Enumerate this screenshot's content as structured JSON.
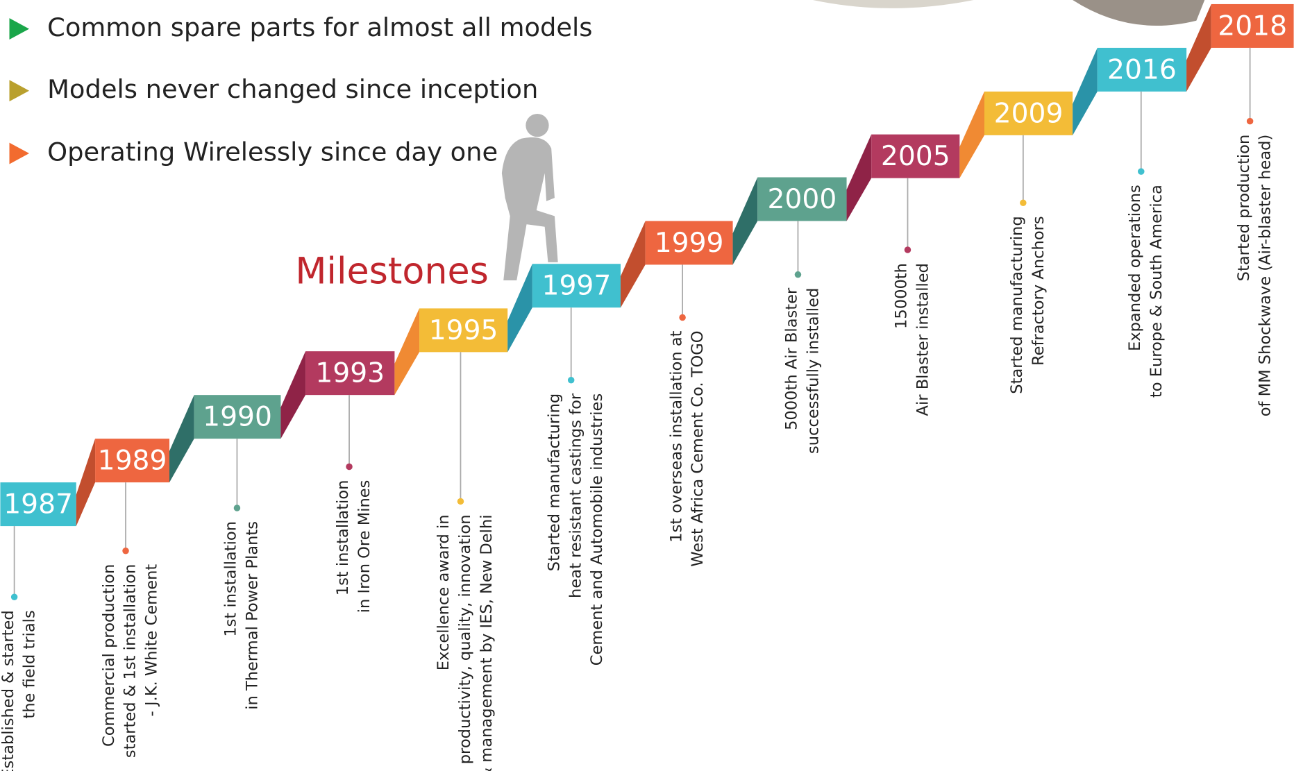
{
  "bullets": [
    {
      "text": "Common spare parts for almost all models",
      "color": "#1aa64a"
    },
    {
      "text": "Models never changed since inception",
      "color": "#b9a02e"
    },
    {
      "text": "Operating Wirelessly since day one",
      "color": "#f26b2f"
    }
  ],
  "title": "Milestones",
  "milestones": [
    {
      "year": "1987",
      "color": "#3fc0cf",
      "shade": "#2a93a0",
      "lines": [
        "Established & started",
        "the field trials"
      ]
    },
    {
      "year": "1989",
      "color": "#ee6640",
      "shade": "#c24e2e",
      "lines": [
        "Commercial production",
        "started & 1st installation",
        "- J.K. White Cement"
      ]
    },
    {
      "year": "1990",
      "color": "#5ea28e",
      "shade": "#2f6f68",
      "lines": [
        "1st installation",
        "in Thermal Power Plants"
      ]
    },
    {
      "year": "1993",
      "color": "#b33a5f",
      "shade": "#8f2347",
      "lines": [
        "1st installation",
        "in Iron Ore Mines"
      ]
    },
    {
      "year": "1995",
      "color": "#f3bc37",
      "shade": "#f08a33",
      "lines": [
        "Excellence award in",
        "productivity, quality, innovation",
        "& management by IES, New Delhi"
      ]
    },
    {
      "year": "1997",
      "color": "#40c0cf",
      "shade": "#2a93a8",
      "lines": [
        "Started manufacturing",
        "heat resistant castings for",
        "Cement and Automobile industries"
      ]
    },
    {
      "year": "1999",
      "color": "#ee6640",
      "shade": "#c24e2e",
      "lines": [
        "1st overseas installation at",
        "West Africa Cement Co. TOGO"
      ]
    },
    {
      "year": "2000",
      "color": "#5ea28e",
      "shade": "#2f6f68",
      "lines": [
        "5000th Air Blaster",
        "successfully installed"
      ]
    },
    {
      "year": "2005",
      "color": "#b33a5f",
      "shade": "#8f2347",
      "lines": [
        "15000th",
        "Air Blaster installed"
      ]
    },
    {
      "year": "2009",
      "color": "#f3bc37",
      "shade": "#f08a33",
      "lines": [
        "Started manufacturing",
        "Refractory Anchors"
      ]
    },
    {
      "year": "2016",
      "color": "#40c0cf",
      "shade": "#2a93a8",
      "lines": [
        "Expanded operations",
        "to Europe & South America"
      ]
    },
    {
      "year": "2018",
      "color": "#ee6640",
      "shade": "#c24e2e",
      "lines": [
        "Started production",
        "of MM Shockwave (Air-blaster head)"
      ]
    }
  ]
}
